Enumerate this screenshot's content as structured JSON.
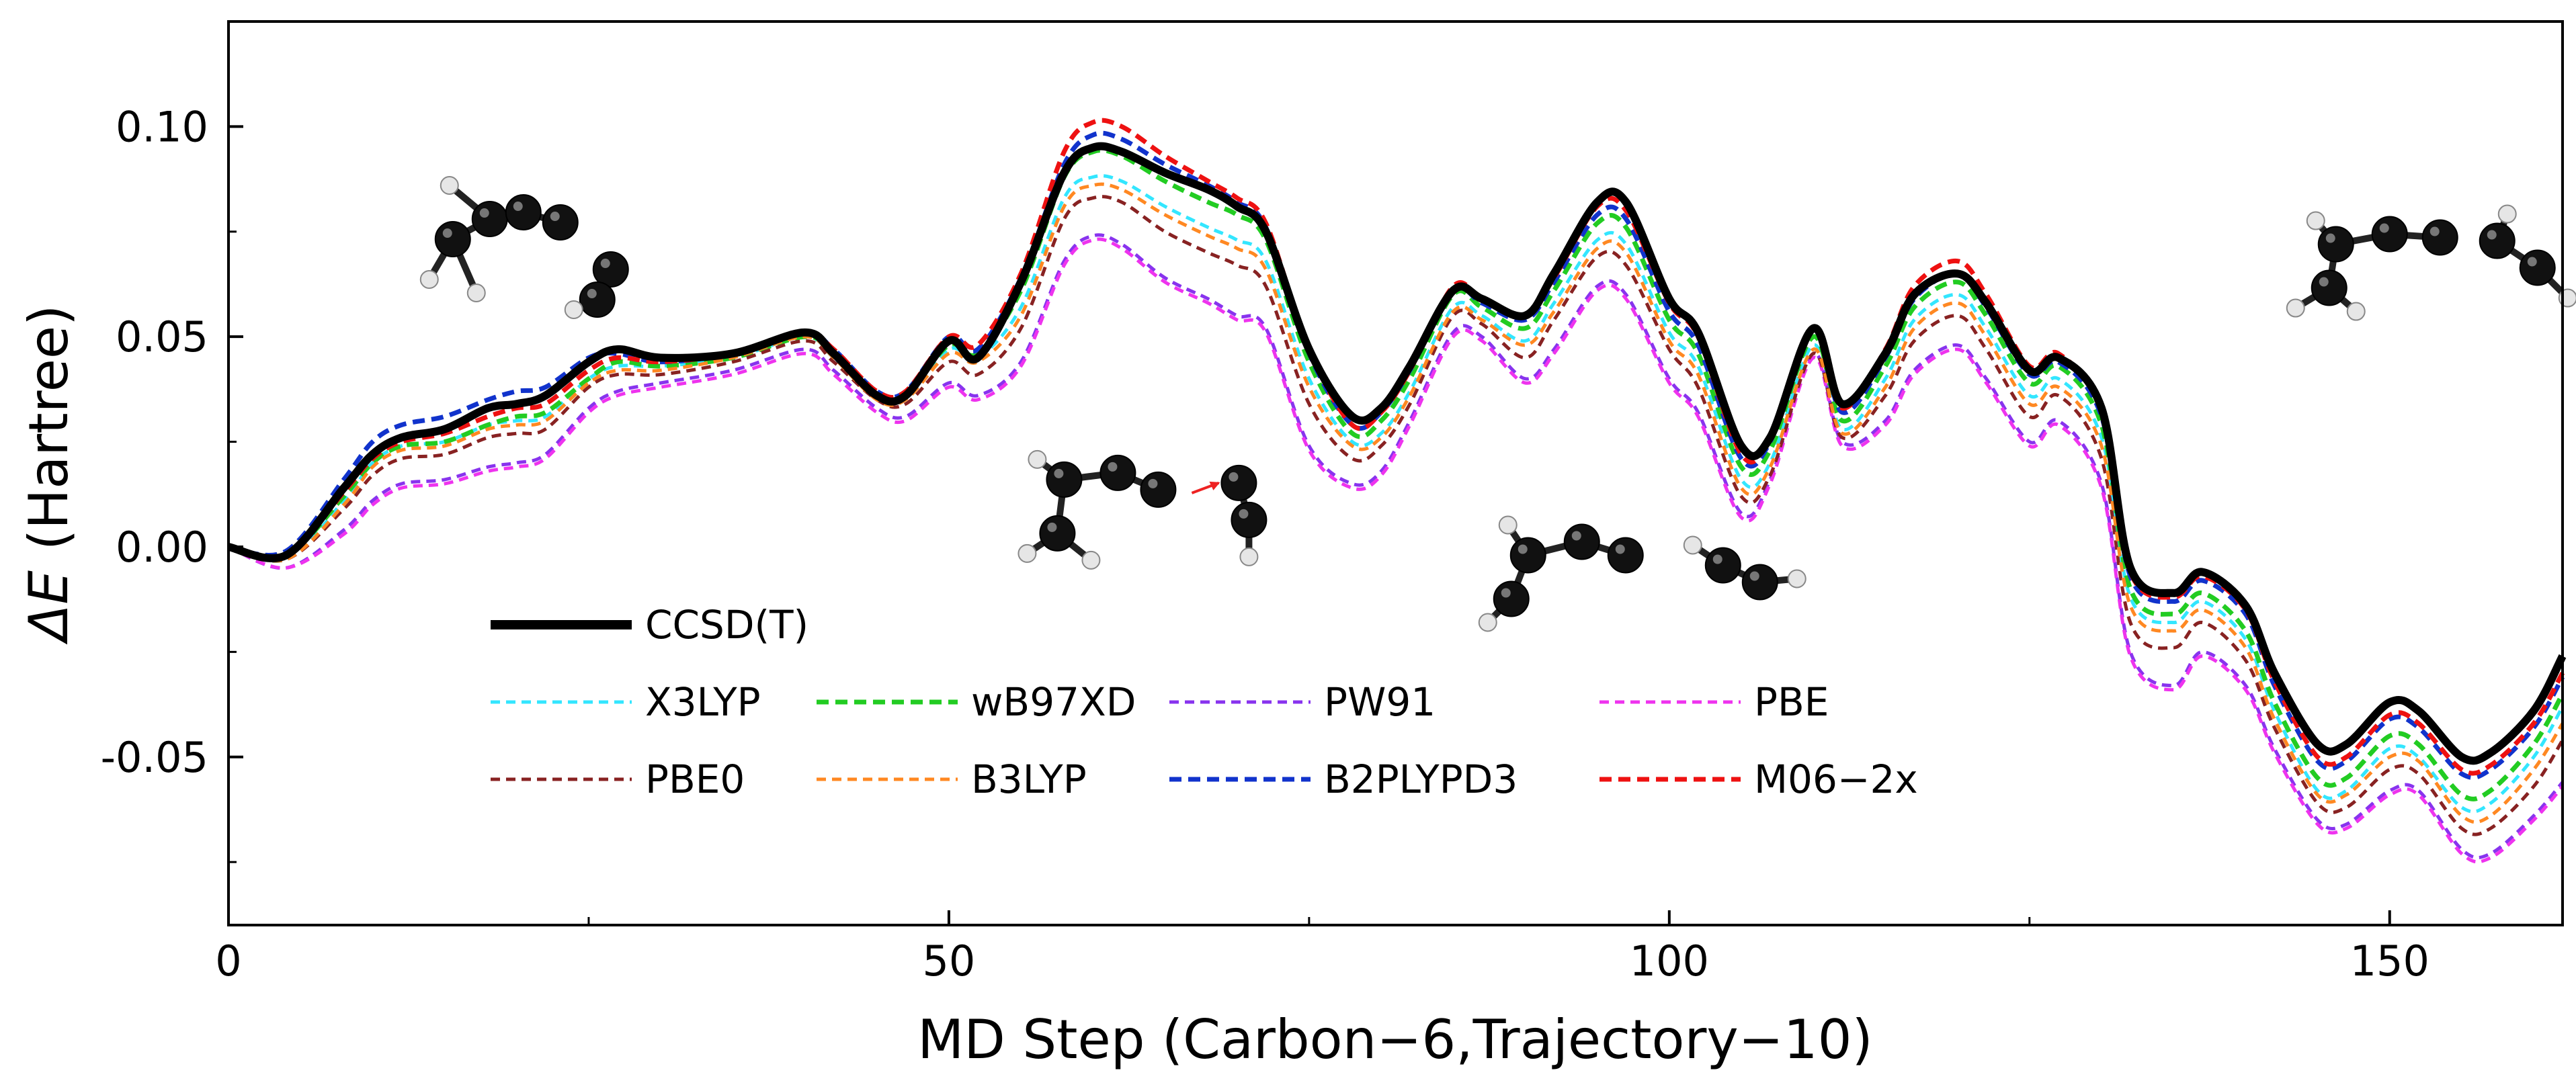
{
  "chart_data": {
    "type": "line",
    "title": "",
    "xlabel": "MD Step (Carbon−6,Trajectory−10)",
    "ylabel_symbol": "ΔE",
    "ylabel_unit": "(Hartree)",
    "xlim": [
      0,
      162
    ],
    "ylim": [
      -0.09,
      0.125
    ],
    "xticks": [
      0,
      50,
      100,
      150
    ],
    "xtick_labels": [
      "0",
      "50",
      "100",
      "150"
    ],
    "xminor": [
      25,
      75,
      125
    ],
    "yticks": [
      0.1,
      0.05,
      0.0,
      -0.05
    ],
    "ytick_labels": [
      "0.10",
      "0.05",
      "0.00",
      "-0.05"
    ],
    "yminor": [
      0.075,
      0.025,
      -0.025,
      -0.075
    ],
    "grid": false,
    "legend_position": "lower-left",
    "x": [
      0,
      4,
      8,
      10,
      12,
      15,
      18,
      20,
      22,
      25,
      27,
      30,
      35,
      40,
      42,
      45,
      47,
      50,
      52,
      55,
      58,
      60,
      62,
      65,
      68,
      70,
      72,
      75,
      78,
      80,
      82,
      85,
      87,
      90,
      92,
      95,
      97,
      100,
      102,
      105,
      107,
      110,
      112,
      115,
      117,
      120,
      122,
      125,
      127,
      130,
      132,
      135,
      137,
      140,
      142,
      145,
      147,
      150,
      152,
      155,
      157,
      160,
      162
    ],
    "series": [
      {
        "name": "CCSD(T)",
        "color": "#000000",
        "style": "solid",
        "width": "thick",
        "values": [
          0.0,
          -0.002,
          0.014,
          0.022,
          0.026,
          0.028,
          0.033,
          0.034,
          0.036,
          0.044,
          0.047,
          0.045,
          0.046,
          0.051,
          0.046,
          0.036,
          0.036,
          0.049,
          0.045,
          0.063,
          0.089,
          0.095,
          0.094,
          0.089,
          0.085,
          0.081,
          0.075,
          0.047,
          0.031,
          0.033,
          0.043,
          0.061,
          0.059,
          0.055,
          0.065,
          0.082,
          0.082,
          0.059,
          0.051,
          0.024,
          0.026,
          0.052,
          0.034,
          0.046,
          0.06,
          0.065,
          0.058,
          0.042,
          0.045,
          0.033,
          -0.005,
          -0.011,
          -0.006,
          -0.014,
          -0.03,
          -0.047,
          -0.047,
          -0.037,
          -0.039,
          -0.05,
          -0.049,
          -0.039,
          -0.026
        ]
      },
      {
        "name": "X3LYP",
        "color": "#33e6ff",
        "style": "dashed",
        "width": "thin",
        "values": [
          0.0,
          -0.003,
          0.011,
          0.02,
          0.024,
          0.025,
          0.029,
          0.03,
          0.031,
          0.04,
          0.043,
          0.043,
          0.045,
          0.05,
          0.045,
          0.036,
          0.035,
          0.047,
          0.045,
          0.057,
          0.083,
          0.088,
          0.087,
          0.081,
          0.076,
          0.073,
          0.068,
          0.04,
          0.025,
          0.027,
          0.037,
          0.057,
          0.055,
          0.049,
          0.058,
          0.073,
          0.072,
          0.051,
          0.043,
          0.016,
          0.02,
          0.048,
          0.028,
          0.04,
          0.054,
          0.06,
          0.052,
          0.036,
          0.04,
          0.026,
          -0.012,
          -0.018,
          -0.013,
          -0.022,
          -0.039,
          -0.058,
          -0.058,
          -0.048,
          -0.05,
          -0.062,
          -0.061,
          -0.05,
          -0.038
        ]
      },
      {
        "name": "wB97XD",
        "color": "#22cc22",
        "style": "dashed",
        "width": "thick",
        "values": [
          0.0,
          -0.002,
          0.012,
          0.02,
          0.024,
          0.025,
          0.029,
          0.031,
          0.032,
          0.04,
          0.044,
          0.043,
          0.045,
          0.05,
          0.046,
          0.036,
          0.036,
          0.048,
          0.046,
          0.061,
          0.088,
          0.094,
          0.093,
          0.087,
          0.082,
          0.079,
          0.073,
          0.044,
          0.027,
          0.03,
          0.04,
          0.06,
          0.057,
          0.052,
          0.061,
          0.077,
          0.076,
          0.054,
          0.046,
          0.019,
          0.023,
          0.05,
          0.03,
          0.043,
          0.057,
          0.063,
          0.055,
          0.039,
          0.043,
          0.029,
          -0.01,
          -0.016,
          -0.011,
          -0.02,
          -0.037,
          -0.055,
          -0.055,
          -0.045,
          -0.047,
          -0.059,
          -0.058,
          -0.047,
          -0.035
        ]
      },
      {
        "name": "PW91",
        "color": "#8833ee",
        "style": "dashed",
        "width": "thin",
        "values": [
          0.0,
          -0.005,
          0.004,
          0.011,
          0.015,
          0.016,
          0.019,
          0.02,
          0.022,
          0.033,
          0.037,
          0.039,
          0.042,
          0.047,
          0.042,
          0.033,
          0.031,
          0.039,
          0.036,
          0.044,
          0.068,
          0.074,
          0.072,
          0.064,
          0.059,
          0.055,
          0.052,
          0.024,
          0.015,
          0.018,
          0.03,
          0.051,
          0.05,
          0.04,
          0.047,
          0.062,
          0.06,
          0.04,
          0.032,
          0.008,
          0.016,
          0.046,
          0.025,
          0.03,
          0.042,
          0.048,
          0.04,
          0.025,
          0.03,
          0.015,
          -0.025,
          -0.033,
          -0.025,
          -0.033,
          -0.048,
          -0.065,
          -0.066,
          -0.058,
          -0.058,
          -0.072,
          -0.073,
          -0.064,
          -0.056
        ]
      },
      {
        "name": "PBE",
        "color": "#ee33ee",
        "style": "dashed",
        "width": "thin",
        "values": [
          0.0,
          -0.005,
          0.003,
          0.01,
          0.014,
          0.015,
          0.018,
          0.019,
          0.021,
          0.032,
          0.036,
          0.038,
          0.041,
          0.046,
          0.041,
          0.032,
          0.03,
          0.038,
          0.035,
          0.043,
          0.067,
          0.073,
          0.071,
          0.063,
          0.058,
          0.054,
          0.051,
          0.023,
          0.014,
          0.017,
          0.029,
          0.05,
          0.049,
          0.039,
          0.046,
          0.061,
          0.059,
          0.039,
          0.031,
          0.007,
          0.015,
          0.045,
          0.024,
          0.029,
          0.041,
          0.047,
          0.039,
          0.024,
          0.029,
          0.014,
          -0.026,
          -0.034,
          -0.026,
          -0.034,
          -0.049,
          -0.066,
          -0.067,
          -0.059,
          -0.059,
          -0.073,
          -0.074,
          -0.065,
          -0.057
        ]
      },
      {
        "name": "PBE0",
        "color": "#882222",
        "style": "dashed",
        "width": "thin",
        "values": [
          0.0,
          -0.003,
          0.009,
          0.017,
          0.021,
          0.022,
          0.026,
          0.027,
          0.028,
          0.038,
          0.041,
          0.041,
          0.044,
          0.049,
          0.044,
          0.035,
          0.034,
          0.044,
          0.041,
          0.052,
          0.078,
          0.083,
          0.082,
          0.075,
          0.07,
          0.067,
          0.062,
          0.034,
          0.021,
          0.024,
          0.034,
          0.055,
          0.053,
          0.045,
          0.054,
          0.069,
          0.067,
          0.047,
          0.038,
          0.012,
          0.017,
          0.046,
          0.026,
          0.036,
          0.049,
          0.055,
          0.047,
          0.031,
          0.036,
          0.021,
          -0.018,
          -0.024,
          -0.018,
          -0.027,
          -0.043,
          -0.061,
          -0.062,
          -0.053,
          -0.054,
          -0.067,
          -0.067,
          -0.057,
          -0.046
        ]
      },
      {
        "name": "B3LYP",
        "color": "#ff8822",
        "style": "dashed",
        "width": "thin",
        "values": [
          0.0,
          -0.003,
          0.01,
          0.019,
          0.023,
          0.024,
          0.028,
          0.029,
          0.03,
          0.039,
          0.042,
          0.042,
          0.045,
          0.05,
          0.045,
          0.035,
          0.035,
          0.046,
          0.044,
          0.055,
          0.081,
          0.086,
          0.085,
          0.079,
          0.074,
          0.071,
          0.066,
          0.038,
          0.024,
          0.026,
          0.036,
          0.056,
          0.054,
          0.048,
          0.056,
          0.071,
          0.07,
          0.049,
          0.041,
          0.014,
          0.019,
          0.047,
          0.027,
          0.038,
          0.052,
          0.058,
          0.05,
          0.034,
          0.038,
          0.024,
          -0.014,
          -0.02,
          -0.015,
          -0.024,
          -0.041,
          -0.059,
          -0.059,
          -0.05,
          -0.051,
          -0.064,
          -0.064,
          -0.053,
          -0.042
        ]
      },
      {
        "name": "B2PLYPD3",
        "color": "#1133cc",
        "style": "dashed",
        "width": "thick",
        "values": [
          0.0,
          -0.001,
          0.016,
          0.025,
          0.029,
          0.031,
          0.035,
          0.037,
          0.038,
          0.045,
          0.046,
          0.044,
          0.046,
          0.051,
          0.047,
          0.037,
          0.037,
          0.05,
          0.047,
          0.064,
          0.091,
          0.098,
          0.097,
          0.091,
          0.086,
          0.082,
          0.076,
          0.046,
          0.029,
          0.032,
          0.042,
          0.061,
          0.058,
          0.054,
          0.063,
          0.079,
          0.078,
          0.056,
          0.048,
          0.021,
          0.025,
          0.052,
          0.032,
          0.045,
          0.059,
          0.065,
          0.057,
          0.041,
          0.044,
          0.031,
          -0.007,
          -0.013,
          -0.008,
          -0.016,
          -0.033,
          -0.051,
          -0.051,
          -0.041,
          -0.043,
          -0.054,
          -0.053,
          -0.043,
          -0.031
        ]
      },
      {
        "name": "M06−2x",
        "color": "#ee1111",
        "style": "dashed",
        "width": "thick",
        "values": [
          0.0,
          -0.002,
          0.013,
          0.021,
          0.025,
          0.027,
          0.031,
          0.033,
          0.034,
          0.042,
          0.045,
          0.044,
          0.046,
          0.051,
          0.047,
          0.037,
          0.037,
          0.05,
          0.048,
          0.065,
          0.094,
          0.101,
          0.1,
          0.093,
          0.087,
          0.083,
          0.077,
          0.047,
          0.029,
          0.032,
          0.042,
          0.062,
          0.059,
          0.055,
          0.064,
          0.081,
          0.08,
          0.058,
          0.05,
          0.022,
          0.026,
          0.052,
          0.033,
          0.047,
          0.062,
          0.068,
          0.06,
          0.043,
          0.046,
          0.032,
          -0.006,
          -0.012,
          -0.007,
          -0.015,
          -0.032,
          -0.05,
          -0.05,
          -0.04,
          -0.042,
          -0.053,
          -0.052,
          -0.042,
          -0.03
        ]
      }
    ],
    "molecules": [
      {
        "name": "molecule-1",
        "x": 20,
        "y": 0.078
      },
      {
        "name": "molecule-2",
        "x": 58,
        "y": 0.016
      },
      {
        "name": "molecule-3",
        "x": 93,
        "y": -0.002
      },
      {
        "name": "molecule-4",
        "x": 150,
        "y": 0.072
      }
    ]
  }
}
